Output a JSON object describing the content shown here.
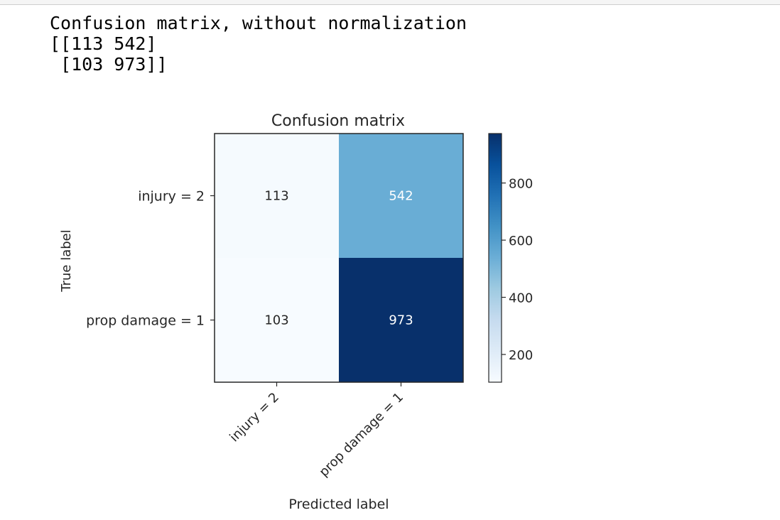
{
  "output": {
    "lines": [
      "Confusion matrix, without normalization",
      "[[113 542]",
      " [103 973]]"
    ]
  },
  "chart_data": {
    "type": "heatmap",
    "title": "Confusion matrix",
    "xlabel": "Predicted label",
    "ylabel": "True label",
    "x_categories": [
      "injury = 2",
      "prop damage = 1"
    ],
    "y_categories": [
      "injury = 2",
      "prop damage = 1"
    ],
    "matrix": [
      [
        113,
        542
      ],
      [
        103,
        973
      ]
    ],
    "colormap": "Blues",
    "colormap_stops": [
      "#f7fbff",
      "#deebf7",
      "#c6dbef",
      "#9ecae1",
      "#6baed6",
      "#4292c6",
      "#2171b5",
      "#08519c",
      "#08306b"
    ],
    "colorbar": {
      "range": [
        103,
        973
      ],
      "ticks": [
        200,
        400,
        600,
        800
      ]
    },
    "grid": false
  }
}
